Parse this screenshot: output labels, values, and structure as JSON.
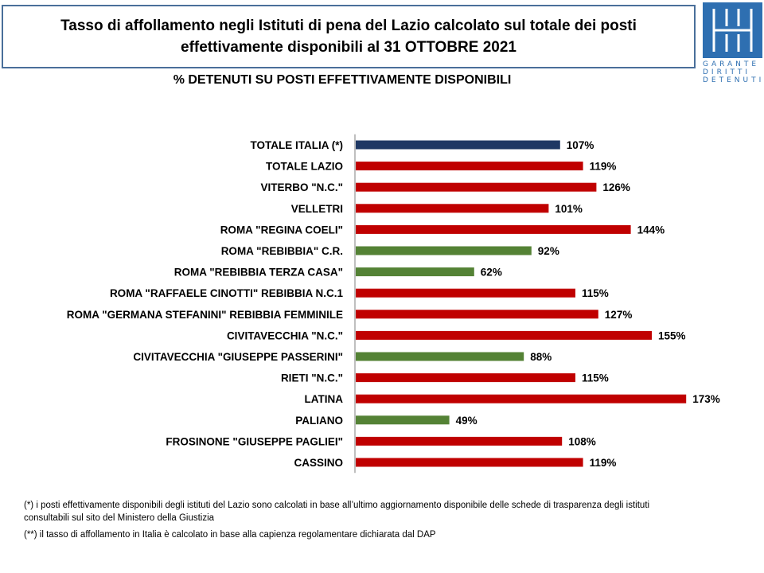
{
  "header": {
    "title_line1": "Tasso di affollamento negli Istituti di pena del Lazio calcolato sul totale dei posti",
    "title_line2": "effettivamente disponibili al 31 OTTOBRE 2021",
    "subtitle": "% DETENUTI SU POSTI EFFETTIVAMENTE  DISPONIBILI"
  },
  "logo": {
    "line1": "GARANTE",
    "line2": "DIRITTI",
    "line3": "DETENUTI",
    "color": "#2e6fb1"
  },
  "chart_data": {
    "type": "bar",
    "orientation": "horizontal",
    "categories": [
      "TOTALE ITALIA (*)",
      "TOTALE LAZIO",
      "VITERBO \"N.C.\"",
      "VELLETRI",
      "ROMA \"REGINA COELI\"",
      "ROMA \"REBIBBIA\" C.R.",
      "ROMA \"REBIBBIA TERZA CASA\"",
      "ROMA \"RAFFAELE CINOTTI\" REBIBBIA N.C.1",
      "ROMA \"GERMANA STEFANINI\" REBIBBIA FEMMINILE",
      "CIVITAVECCHIA \"N.C.\"",
      "CIVITAVECCHIA \"GIUSEPPE PASSERINI\"",
      "RIETI \"N.C.\"",
      "LATINA",
      "PALIANO",
      "FROSINONE \"GIUSEPPE PAGLIEI\"",
      "CASSINO"
    ],
    "values": [
      107,
      119,
      126,
      101,
      144,
      92,
      62,
      115,
      127,
      155,
      88,
      115,
      173,
      49,
      108,
      119
    ],
    "value_labels": [
      "107%",
      "119%",
      "126%",
      "101%",
      "144%",
      "92%",
      "62%",
      "115%",
      "127%",
      "155%",
      "88%",
      "115%",
      "173%",
      "49%",
      "108%",
      "119%"
    ],
    "bar_colors": [
      "#1f3864",
      "#c00000",
      "#c00000",
      "#c00000",
      "#c00000",
      "#548235",
      "#548235",
      "#c00000",
      "#c00000",
      "#c00000",
      "#548235",
      "#c00000",
      "#c00000",
      "#548235",
      "#c00000",
      "#c00000"
    ],
    "xlim": [
      0,
      180
    ],
    "grid": false,
    "legend": "none"
  },
  "footnotes": {
    "line1": "(*) i posti effettivamente disponibili  degli istituti del Lazio sono  calcolati in base all’ultimo aggiornamento disponibile  delle schede  di trasparenza degli istituti",
    "line2": "consultabili  sul sito del Ministero della Giustizia",
    "line3": "(**) il tasso di affollamento  in Italia è calcolato in base alla capienza regolamentare dichiarata dal DAP"
  }
}
